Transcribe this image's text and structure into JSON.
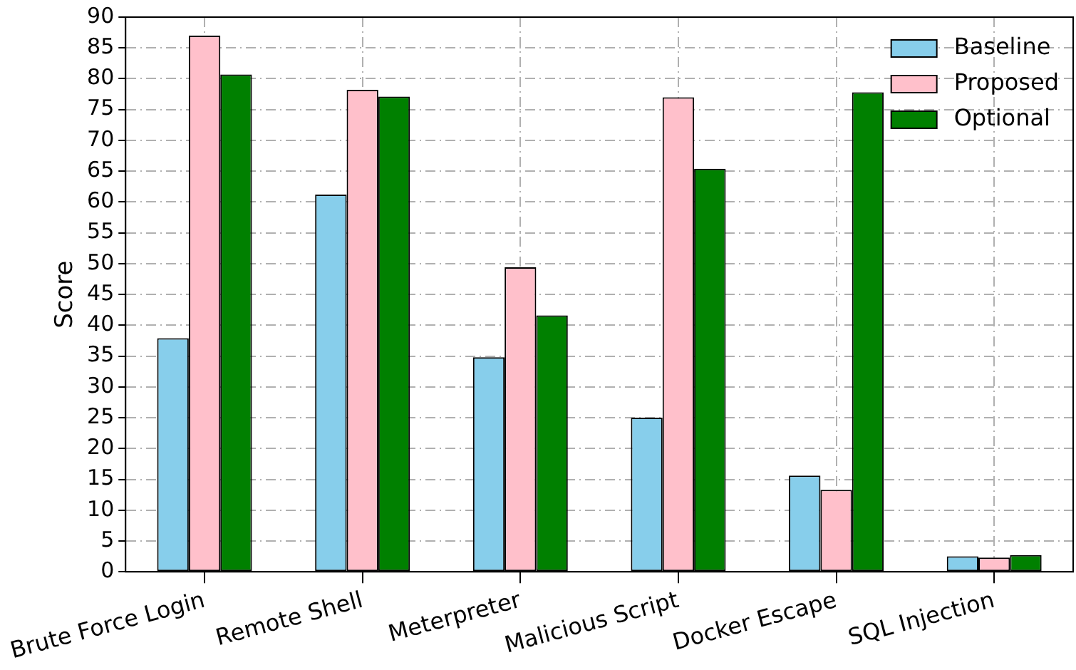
{
  "chart_data": {
    "type": "bar",
    "ylabel": "Score",
    "categories": [
      "Brute Force Login",
      "Remote Shell",
      "Meterpreter",
      "Malicious Script",
      "Docker Escape",
      "SQL Injection"
    ],
    "series": [
      {
        "name": "Baseline",
        "color": "#87ceeb",
        "values": [
          37.9,
          61.2,
          34.8,
          25.0,
          15.6,
          2.5
        ]
      },
      {
        "name": "Proposed",
        "color": "#ffc0cb",
        "values": [
          87.0,
          78.2,
          49.4,
          77.0,
          13.3,
          2.3
        ]
      },
      {
        "name": "Optional",
        "color": "#008000",
        "values": [
          80.7,
          77.1,
          41.6,
          65.4,
          77.8,
          2.7
        ]
      }
    ],
    "ylim": [
      0,
      90
    ],
    "yticks": [
      0,
      5,
      10,
      15,
      20,
      25,
      30,
      35,
      40,
      45,
      50,
      55,
      60,
      65,
      70,
      75,
      80,
      85,
      90
    ],
    "grid": true,
    "legend": "top right"
  }
}
